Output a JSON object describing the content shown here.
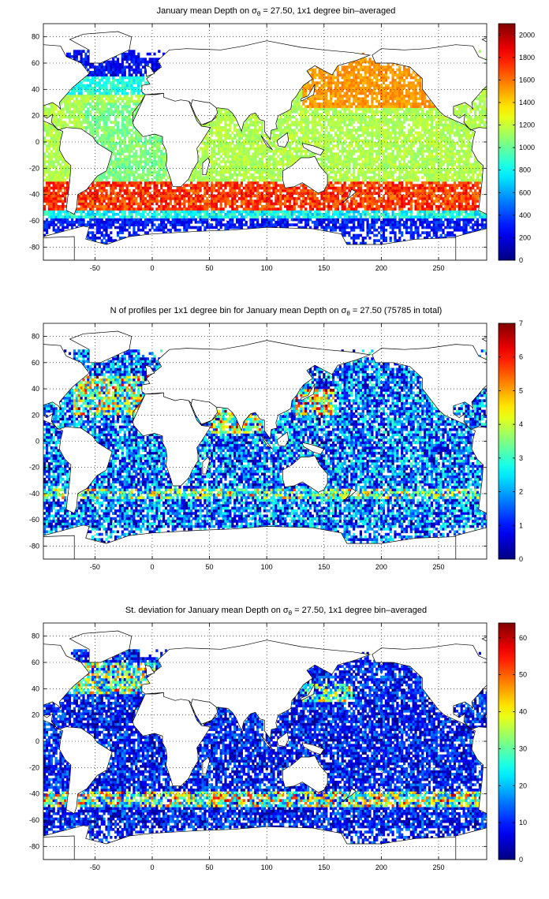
{
  "chart_data": [
    {
      "type": "heatmap",
      "title": "January mean Depth on σ",
      "title_sub": "θ",
      "title_tail": " = 27.50, 1x1 degree bin–averaged",
      "xlim": [
        -95,
        292
      ],
      "ylim": [
        -90,
        90
      ],
      "xticks": [
        -50,
        0,
        50,
        100,
        150,
        200,
        250
      ],
      "yticks": [
        80,
        60,
        40,
        20,
        0,
        -20,
        -40,
        -60,
        -80
      ],
      "grid": true,
      "colorbar": {
        "min": 0,
        "max": 2100,
        "ticks": [
          2000,
          1800,
          1600,
          1400,
          1200,
          1000,
          800,
          600,
          400,
          200,
          0
        ]
      },
      "field": "depth"
    },
    {
      "type": "heatmap",
      "title": "N of profiles per 1x1 degree bin for January mean Depth on σ",
      "title_sub": "θ",
      "title_tail": " = 27.50 (75785 in total)",
      "xlim": [
        -95,
        292
      ],
      "ylim": [
        -90,
        90
      ],
      "xticks": [
        -50,
        0,
        50,
        100,
        150,
        200,
        250
      ],
      "yticks": [
        80,
        60,
        40,
        20,
        0,
        -20,
        -40,
        -60,
        -80
      ],
      "grid": true,
      "colorbar": {
        "min": 0,
        "max": 7,
        "ticks": [
          7,
          6,
          5,
          4,
          3,
          2,
          1,
          0
        ]
      },
      "field": "count"
    },
    {
      "type": "heatmap",
      "title": "St. deviation for January mean Depth on σ",
      "title_sub": "θ",
      "title_tail": " = 27.50, 1x1 degree bin–averaged",
      "xlim": [
        -95,
        292
      ],
      "ylim": [
        -90,
        90
      ],
      "xticks": [
        -50,
        0,
        50,
        100,
        150,
        200,
        250
      ],
      "yticks": [
        80,
        60,
        40,
        20,
        0,
        -20,
        -40,
        -60,
        -80
      ],
      "grid": true,
      "colorbar": {
        "min": 0,
        "max": 64,
        "ticks": [
          60,
          50,
          40,
          30,
          20,
          10,
          0
        ]
      },
      "field": "std"
    }
  ]
}
